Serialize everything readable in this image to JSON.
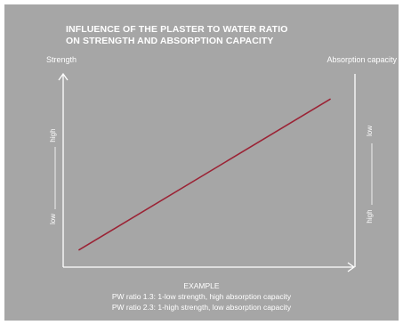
{
  "colors": {
    "panel_background": "#a6a6a6",
    "axis": "#ffffff",
    "text": "#ffffff",
    "series_line": "#9b2335"
  },
  "chart_data": {
    "type": "line",
    "title_lines": [
      "INFLUENCE OF THE PLASTER TO WATER RATIO",
      "ON STRENGTH AND ABSORPTION CAPACITY"
    ],
    "ylabel_left": "Strength",
    "ylabel_right": "Absorption capacity",
    "left_axis_ticks": {
      "low": "low",
      "high": "high"
    },
    "right_axis_ticks": {
      "low": "low",
      "high": "high"
    },
    "xlim": [
      0,
      1
    ],
    "ylim": [
      0,
      1
    ],
    "right_axis_inverted": true,
    "grid": false,
    "series": [
      {
        "x": [
          0,
          1
        ],
        "y": [
          0.05,
          0.95
        ],
        "color": "#9b2335"
      }
    ],
    "annotation": {
      "heading": "EXAMPLE",
      "lines": [
        "PW ratio 1.3: 1-low strength, high absorption capacity",
        "PW ratio 2.3: 1-high strength, low absorption capacity"
      ]
    }
  }
}
